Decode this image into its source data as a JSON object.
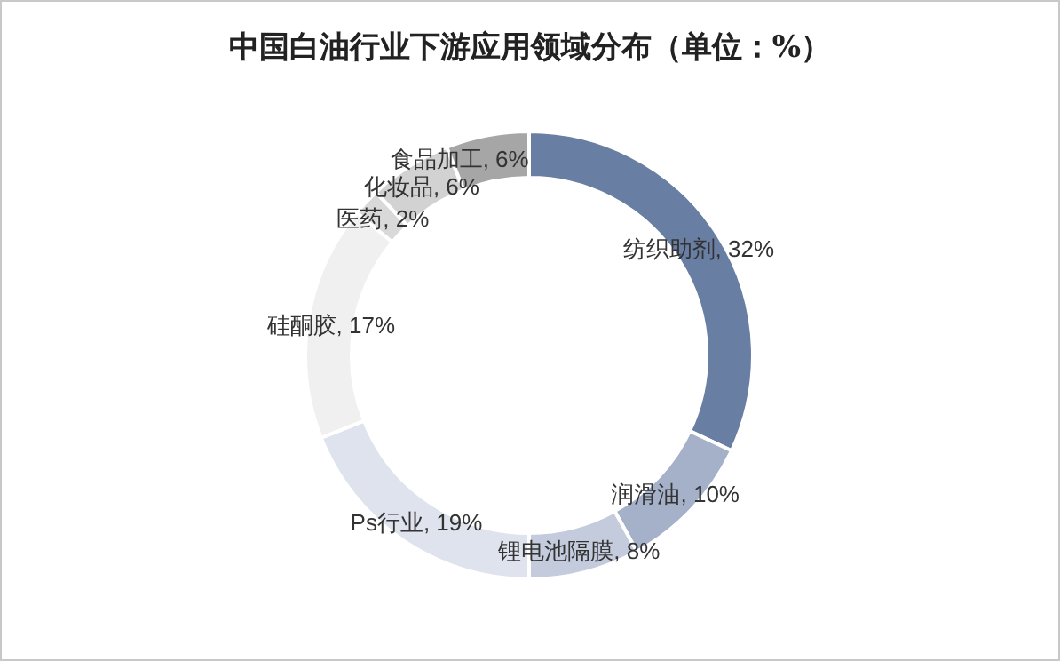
{
  "chart_data": {
    "type": "donut",
    "title": "中国白油行业下游应用领域分布（单位：%）",
    "categories": [
      "纺织助剂",
      "润滑油",
      "锂电池隔膜",
      "Ps行业",
      "硅酮胶",
      "医药",
      "化妆品",
      "食品加工"
    ],
    "values": [
      32,
      10,
      8,
      19,
      17,
      2,
      6,
      6
    ],
    "colors": [
      "#687ea3",
      "#a5b1c9",
      "#c4cbdc",
      "#dfe3ed",
      "#f0f0f0",
      "#d9d9d9",
      "#d2d2d2",
      "#a6a6a6"
    ],
    "value_labels": [
      "32%",
      "10%",
      "8%",
      "19%",
      "17%",
      "2%",
      "6%",
      "6%"
    ]
  }
}
